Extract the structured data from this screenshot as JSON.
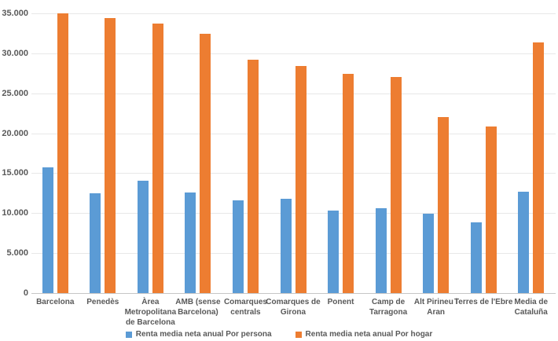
{
  "chart_data": {
    "type": "bar",
    "title": "",
    "xlabel": "",
    "ylabel": "",
    "categories": [
      "Barcelona",
      "Penedès",
      "Àrea Metropolitana de Barcelona",
      "AMB (sense Barcelona)",
      "Comarques centrals",
      "Comarques de Girona",
      "Ponent",
      "Camp de Tarragona",
      "Alt Pirineu i Aran",
      "Terres de l'Ebre",
      "Media de Cataluña"
    ],
    "series": [
      {
        "name": "Renta media neta anual Por persona",
        "color": "#5B9BD5",
        "values": [
          15700,
          12500,
          14100,
          12600,
          11600,
          11800,
          10300,
          10600,
          9900,
          8800,
          12700
        ]
      },
      {
        "name": "Renta media neta anual Por hogar",
        "color": "#ED7D31",
        "values": [
          35000,
          34400,
          33700,
          32400,
          29200,
          28400,
          27400,
          27000,
          22000,
          20800,
          31400
        ]
      }
    ],
    "ylim": [
      0,
      35000
    ],
    "ytick_step": 5000,
    "ytick_labels": [
      "0",
      "5.000",
      "10.000",
      "15.000",
      "20.000",
      "25.000",
      "30.000",
      "35.000"
    ],
    "grid": true,
    "legend_position": "bottom"
  },
  "colors": {
    "background": "#ffffff",
    "gridline": "#e8e8e8",
    "zero_axis": "#c6c6c6",
    "tick_text": "#595959",
    "series_persona": "#5B9BD5",
    "series_hogar": "#ED7D31"
  }
}
